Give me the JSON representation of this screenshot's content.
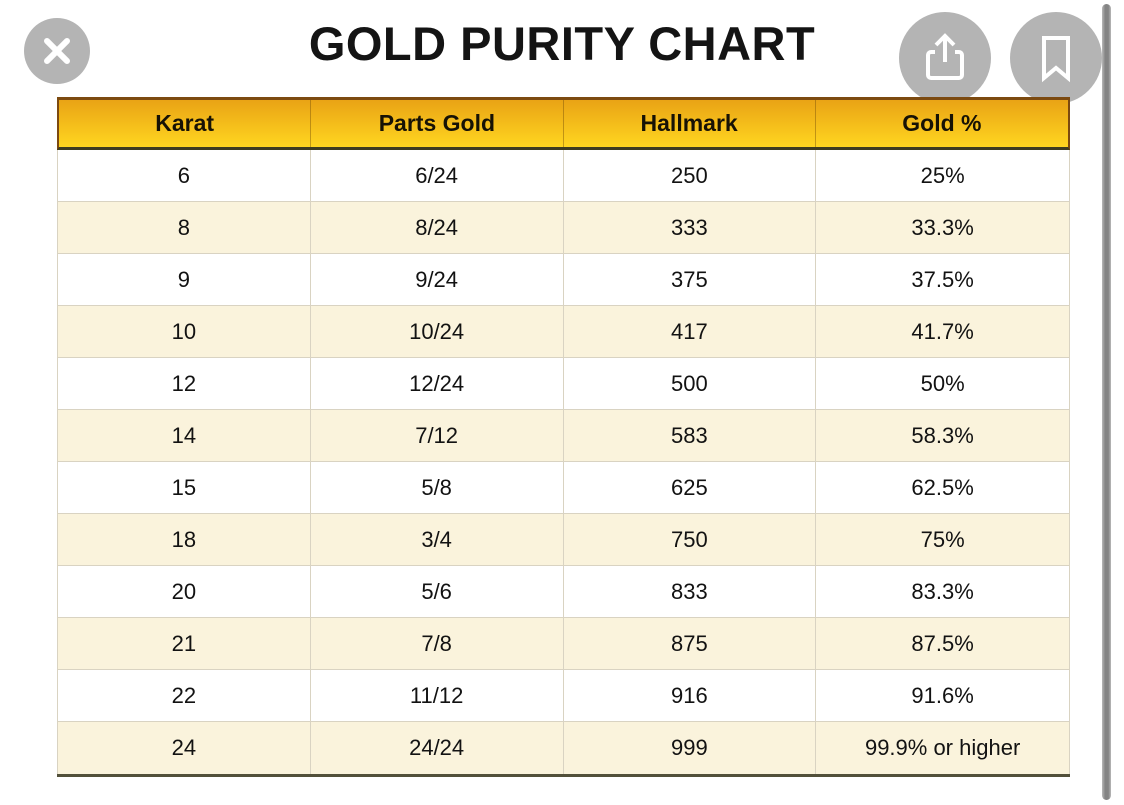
{
  "title": "GOLD PURITY CHART",
  "toolbar": {
    "close": "close",
    "share": "share",
    "bookmark": "bookmark"
  },
  "table": {
    "headers": [
      "Karat",
      "Parts Gold",
      "Hallmark",
      "Gold %"
    ],
    "rows": [
      [
        "6",
        "6/24",
        "250",
        "25%"
      ],
      [
        "8",
        "8/24",
        "333",
        "33.3%"
      ],
      [
        "9",
        "9/24",
        "375",
        "37.5%"
      ],
      [
        "10",
        "10/24",
        "417",
        "41.7%"
      ],
      [
        "12",
        "12/24",
        "500",
        "50%"
      ],
      [
        "14",
        "7/12",
        "583",
        "58.3%"
      ],
      [
        "15",
        "5/8",
        "625",
        "62.5%"
      ],
      [
        "18",
        "3/4",
        "750",
        "75%"
      ],
      [
        "20",
        "5/6",
        "833",
        "83.3%"
      ],
      [
        "21",
        "7/8",
        "875",
        "87.5%"
      ],
      [
        "22",
        "11/12",
        "916",
        "91.6%"
      ],
      [
        "24",
        "24/24",
        "999",
        "99.9% or higher"
      ]
    ]
  },
  "colors": {
    "header_gradient_top": "#e9a315",
    "header_gradient_bottom": "#ffd620",
    "header_border_dark": "#7c4a10",
    "header_bottom_border": "#3e3c20",
    "row_bg": "#ffffff",
    "row_alt_bg": "#faf3dc",
    "grid_line": "#d9d3c2",
    "table_bottom_border": "#52503a",
    "button_circle": "#b4b4b4",
    "scrollbar": "#848484",
    "title_color": "#141414",
    "text_color": "#141414"
  }
}
